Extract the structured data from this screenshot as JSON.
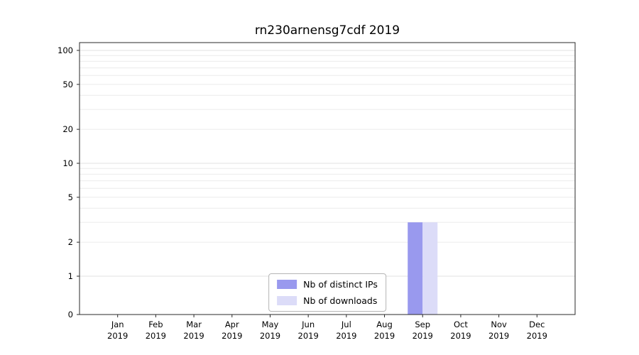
{
  "chart_data": {
    "type": "bar",
    "title": "rn230arnensg7cdf 2019",
    "scale": "symlog",
    "grid": "horizontal-minor",
    "legend_position": "lower center",
    "x_tick_year": "2019",
    "categories": [
      "Jan",
      "Feb",
      "Mar",
      "Apr",
      "May",
      "Jun",
      "Jul",
      "Aug",
      "Sep",
      "Oct",
      "Nov",
      "Dec"
    ],
    "series": [
      {
        "name": "Nb of distinct IPs",
        "color": "#9999ee",
        "values": [
          0,
          0,
          0,
          0,
          0,
          0,
          0,
          0,
          3,
          0,
          0,
          0
        ]
      },
      {
        "name": "Nb of downloads",
        "color": "#dcdcf8",
        "values": [
          0,
          0,
          0,
          0,
          0,
          0,
          0,
          0,
          3,
          0,
          0,
          0
        ]
      }
    ],
    "yticks": [
      0,
      1,
      2,
      5,
      10,
      20,
      50,
      100
    ],
    "ylim": [
      0,
      120
    ],
    "xlabel": "",
    "ylabel": ""
  },
  "colors": {
    "axis": "#2a2a2a",
    "grid_minor": "#ebebeb",
    "grid_major": "#e0e0e0",
    "text": "#000000"
  }
}
